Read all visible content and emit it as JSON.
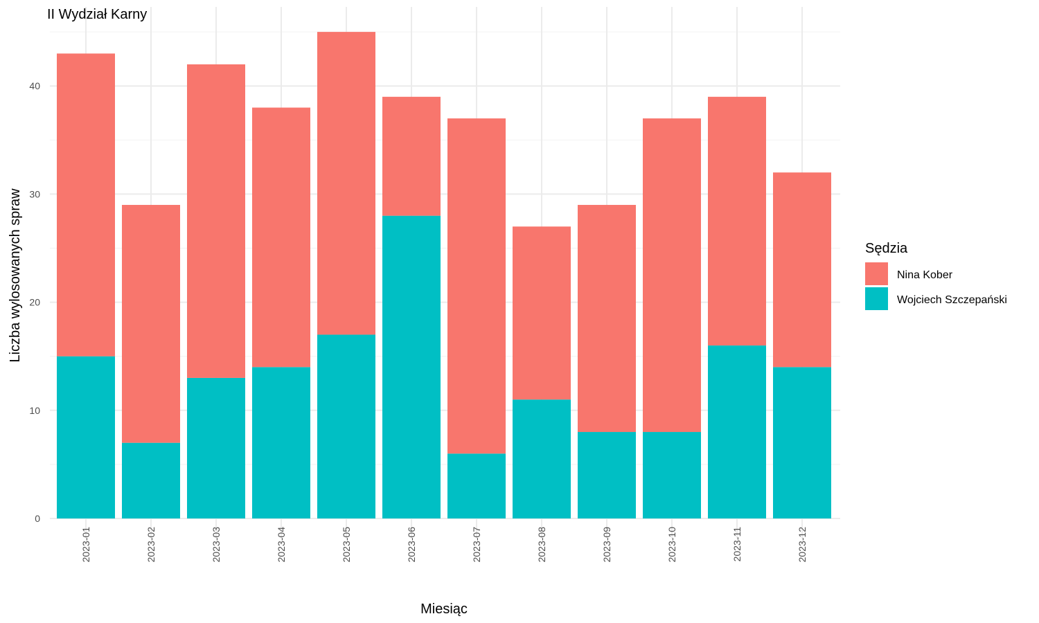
{
  "chart_data": {
    "type": "bar",
    "stacked": true,
    "title": "II Wydział Karny",
    "xlabel": "Miesiąc",
    "ylabel": "Liczba wylosowanych spraw",
    "categories": [
      "2023-01",
      "2023-02",
      "2023-03",
      "2023-04",
      "2023-05",
      "2023-06",
      "2023-07",
      "2023-08",
      "2023-09",
      "2023-10",
      "2023-11",
      "2023-12"
    ],
    "ylim": [
      0,
      47
    ],
    "yticks": [
      0,
      10,
      20,
      30,
      40
    ],
    "grid": true,
    "legend": {
      "title": "Sędzia",
      "position": "right"
    },
    "series": [
      {
        "name": "Wojciech Szczepański",
        "color": "#00BFC4",
        "values": [
          15,
          7,
          13,
          14,
          17,
          28,
          6,
          11,
          8,
          8,
          16,
          14
        ]
      },
      {
        "name": "Nina Kober",
        "color": "#F8766D",
        "values": [
          28,
          22,
          29,
          24,
          28,
          11,
          31,
          16,
          21,
          29,
          23,
          18
        ]
      }
    ],
    "legend_order": [
      "Nina Kober",
      "Wojciech Szczepański"
    ]
  }
}
